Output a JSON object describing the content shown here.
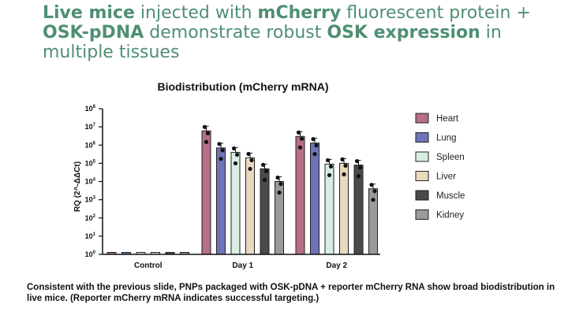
{
  "headline": {
    "line1": {
      "b1": "Live mice",
      "t1": " injected with ",
      "b2": "mCherry",
      "t2": " fluorescent protein +"
    },
    "line2": {
      "b1": "OSK-pDNA",
      "t1": " demonstrate robust ",
      "b2": "OSK expression",
      "t2": " in"
    },
    "line3": {
      "t1": "multiple tissues"
    }
  },
  "caption": "Consistent with the previous slide, PNPs packaged with OSK-pDNA + reporter mCherry RNA show broad biodistribution in live mice. (Reporter mCherry mRNA indicates successful targeting.)",
  "chart_data": {
    "type": "bar",
    "title": "Biodistribution (mCherry mRNA)",
    "ylabel": "RQ (2^-ΔΔCt)",
    "xlabel": "",
    "yscale": "log",
    "ylim": [
      1,
      100000000
    ],
    "yticks": [
      {
        "base": "10",
        "exp": "0",
        "value": 1
      },
      {
        "base": "10",
        "exp": "1",
        "value": 10
      },
      {
        "base": "10",
        "exp": "2",
        "value": 100
      },
      {
        "base": "10",
        "exp": "3",
        "value": 1000
      },
      {
        "base": "10",
        "exp": "4",
        "value": 10000
      },
      {
        "base": "10",
        "exp": "5",
        "value": 100000
      },
      {
        "base": "10",
        "exp": "6",
        "value": 1000000
      },
      {
        "base": "10",
        "exp": "7",
        "value": 10000000
      },
      {
        "base": "10",
        "exp": "8",
        "value": 100000000
      }
    ],
    "categories": [
      "Control",
      "Day 1",
      "Day 2"
    ],
    "legend_position": "right",
    "series": [
      {
        "name": "Heart",
        "color": "#b56f87",
        "values": [
          1,
          6000000,
          3000000
        ]
      },
      {
        "name": "Lung",
        "color": "#6f73b8",
        "values": [
          1,
          700000,
          1300000
        ]
      },
      {
        "name": "Spleen",
        "color": "#d8eee2",
        "values": [
          1,
          400000,
          90000
        ]
      },
      {
        "name": "Liver",
        "color": "#e8d9bf",
        "values": [
          1,
          200000,
          100000
        ]
      },
      {
        "name": "Muscle",
        "color": "#4a4a4a",
        "values": [
          1,
          50000,
          80000
        ]
      },
      {
        "name": "Kidney",
        "color": "#9a9a9a",
        "values": [
          1,
          10000,
          4000
        ]
      }
    ]
  }
}
